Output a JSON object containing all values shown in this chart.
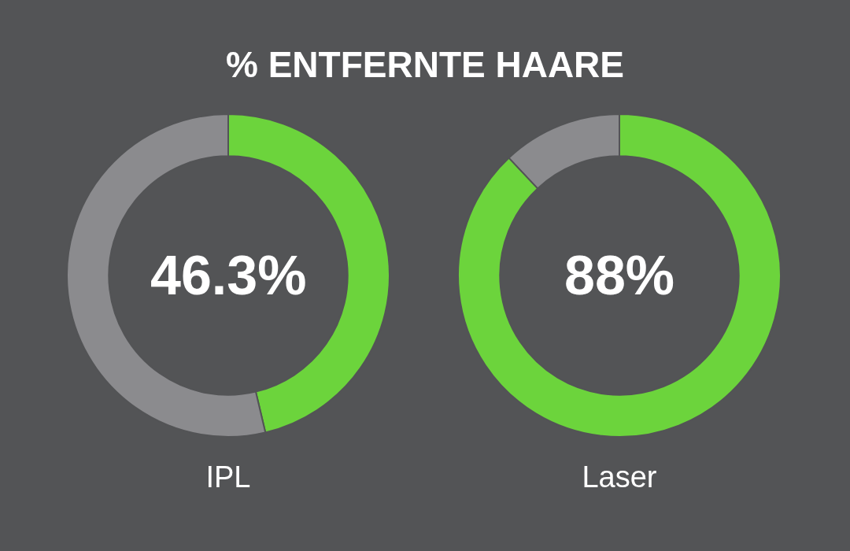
{
  "chart_data": [
    {
      "type": "donut",
      "title": "% ENTFERNTE HAARE",
      "xlabel": "IPL",
      "categories": [
        null,
        null
      ],
      "values": [
        46.3,
        53.7
      ],
      "colors": [
        "#6cd43c",
        "#8b8b8e"
      ],
      "value_labels": [
        "46.3%",
        null
      ]
    },
    {
      "type": "donut",
      "xlabel": "Laser",
      "categories": [
        null,
        null
      ],
      "values": [
        88,
        12
      ],
      "colors": [
        "#6cd43c",
        "#8b8b8e"
      ],
      "value_labels": [
        "88%",
        null
      ]
    }
  ]
}
